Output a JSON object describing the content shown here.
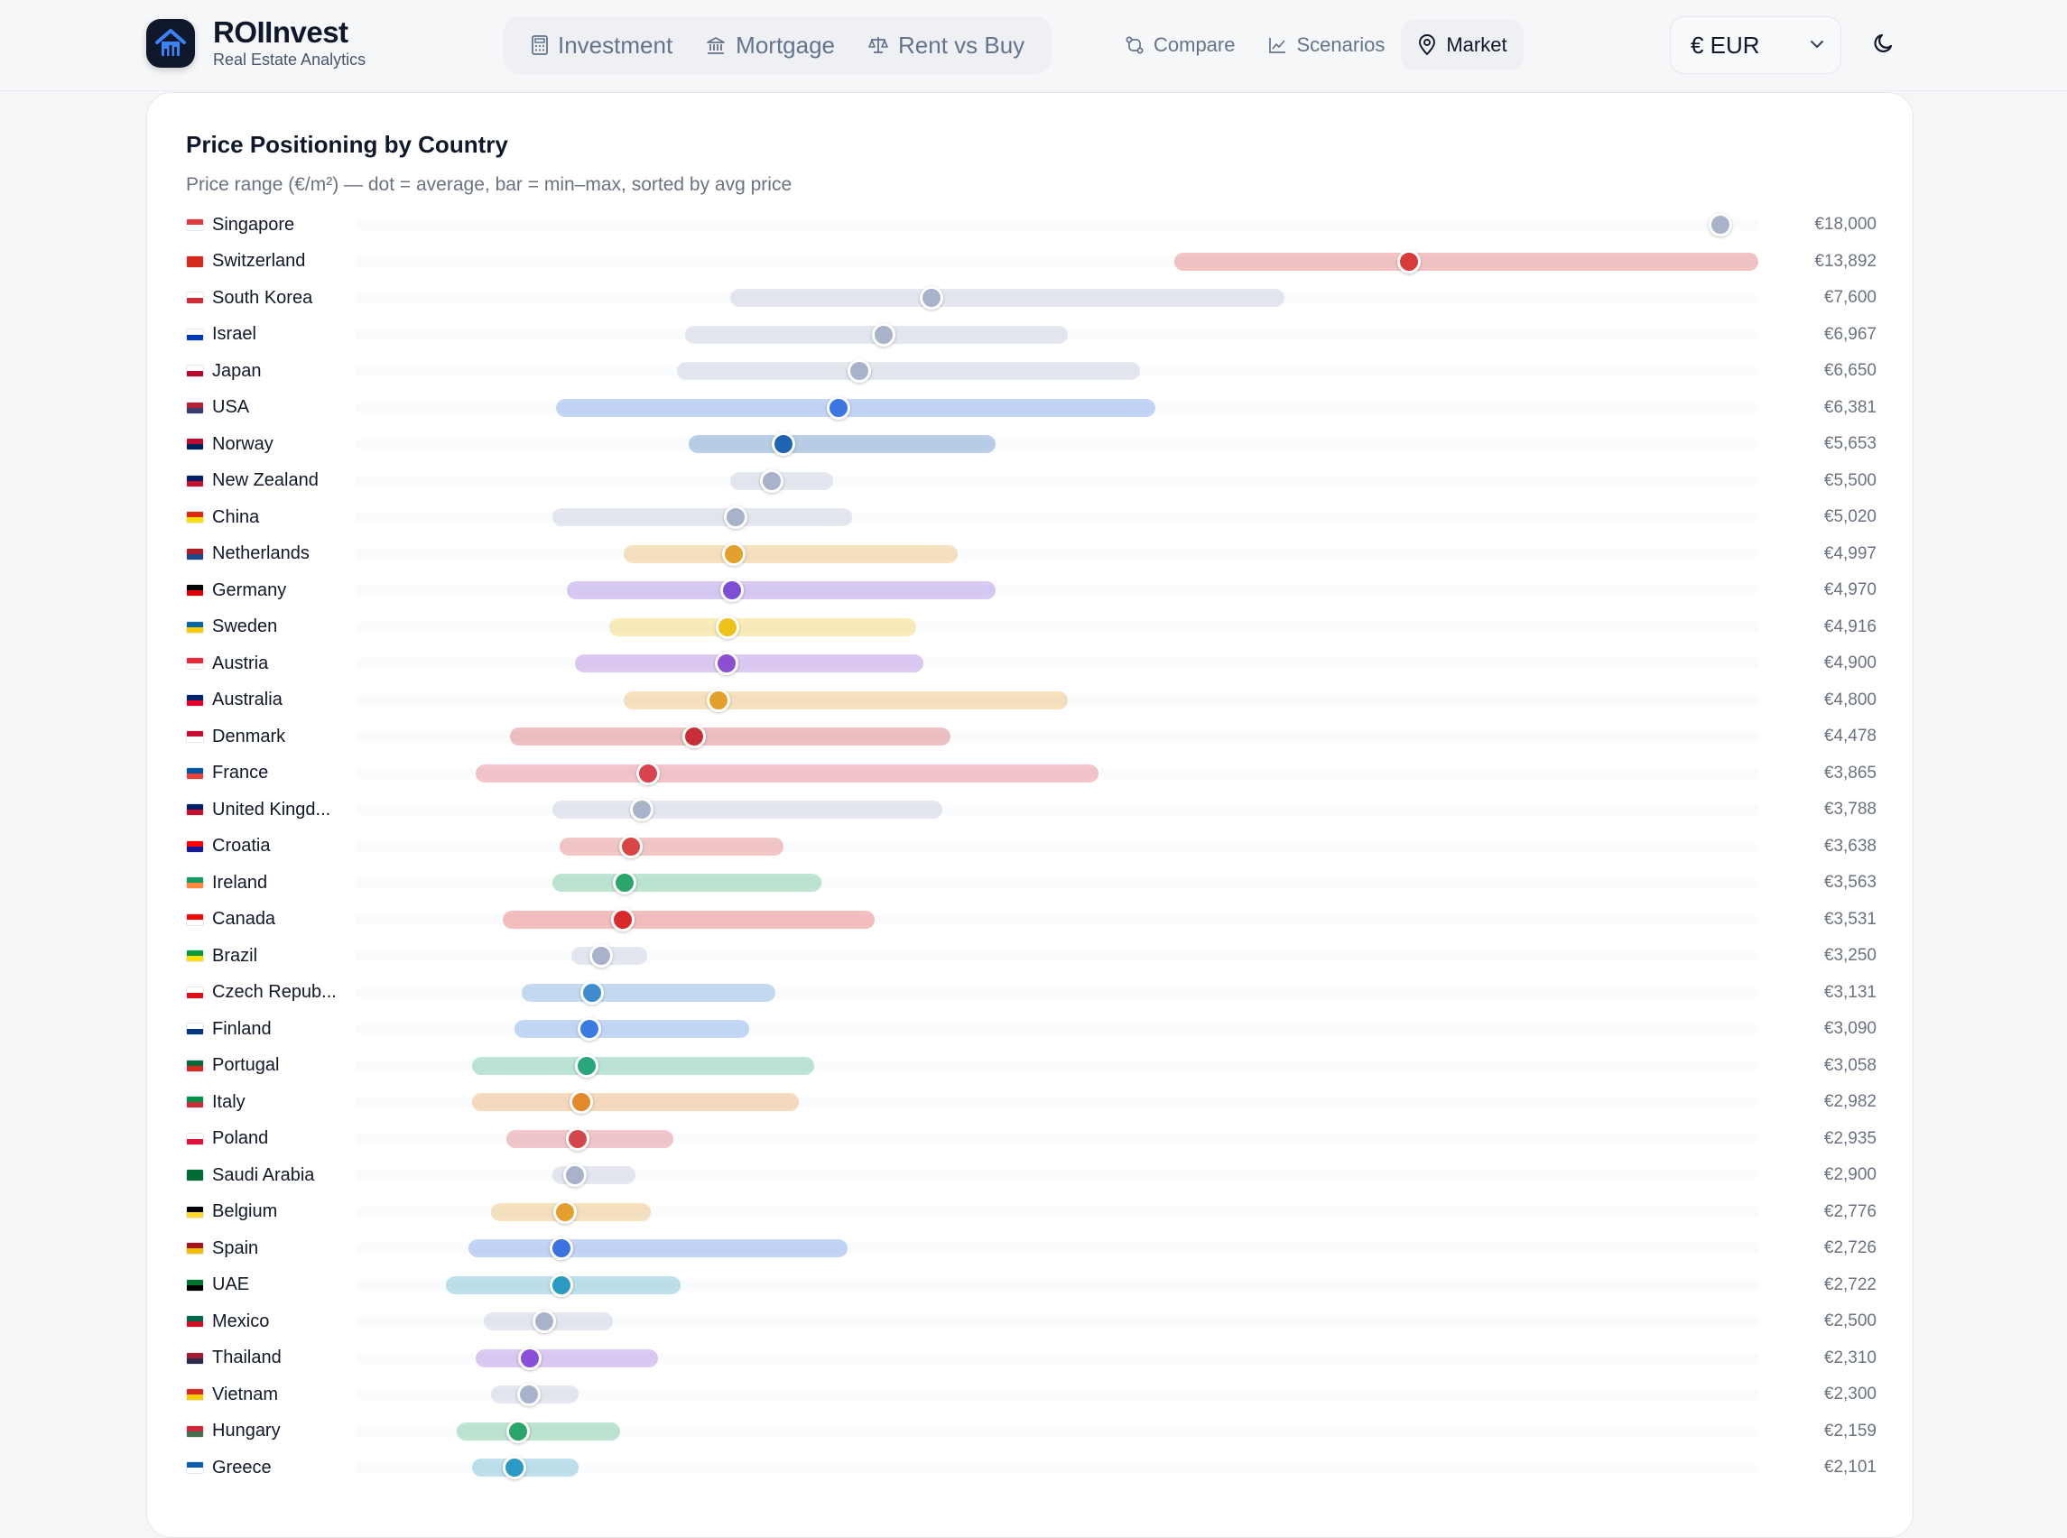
{
  "brand": {
    "title": "ROIInvest",
    "subtitle": "Real Estate Analytics"
  },
  "nav": {
    "primary": [
      {
        "label": "Investment",
        "icon": "calculator-icon"
      },
      {
        "label": "Mortgage",
        "icon": "bank-icon"
      },
      {
        "label": "Rent vs Buy",
        "icon": "scale-icon"
      }
    ],
    "secondary": [
      {
        "label": "Compare",
        "icon": "compare-icon"
      },
      {
        "label": "Scenarios",
        "icon": "line-chart-icon"
      },
      {
        "label": "Market",
        "icon": "map-pin-icon",
        "active": true
      }
    ]
  },
  "currency": {
    "selected": "€ EUR"
  },
  "card": {
    "title": "Price Positioning by Country",
    "subtitle": "Price range (€/m²) — dot = average, bar = min–max, sorted by avg price"
  },
  "chart_data": {
    "type": "range-dot",
    "unit": "€/m²",
    "xlim": [
      0,
      18500
    ],
    "rows": [
      {
        "country": "Singapore",
        "avg": 18000,
        "min": 18000,
        "max": 18000,
        "value_label": "€18,000",
        "color": "#a8b3c9",
        "flag": [
          "#e03a3e",
          "#ffffff"
        ]
      },
      {
        "country": "Switzerland",
        "avg": 13892,
        "min": 10800,
        "max": 18500,
        "value_label": "€13,892",
        "color": "#d93b3b",
        "flag": [
          "#d52b1e",
          "#d52b1e"
        ]
      },
      {
        "country": "South Korea",
        "avg": 7600,
        "min": 4950,
        "max": 12250,
        "value_label": "€7,600",
        "color": "#a8b3c9",
        "flag": [
          "#ffffff",
          "#cd2e3a"
        ]
      },
      {
        "country": "Israel",
        "avg": 6967,
        "min": 4350,
        "max": 9400,
        "value_label": "€6,967",
        "color": "#a8b3c9",
        "flag": [
          "#ffffff",
          "#0038b8"
        ]
      },
      {
        "country": "Japan",
        "avg": 6650,
        "min": 4250,
        "max": 10350,
        "value_label": "€6,650",
        "color": "#a8b3c9",
        "flag": [
          "#ffffff",
          "#bc002d"
        ]
      },
      {
        "country": "USA",
        "avg": 6381,
        "min": 2650,
        "max": 10550,
        "value_label": "€6,381",
        "color": "#3b76e1",
        "flag": [
          "#b22234",
          "#3c3b6e"
        ]
      },
      {
        "country": "Norway",
        "avg": 5653,
        "min": 4400,
        "max": 8450,
        "value_label": "€5,653",
        "color": "#1f64b0",
        "flag": [
          "#ba0c2f",
          "#00205b"
        ]
      },
      {
        "country": "New Zealand",
        "avg": 5500,
        "min": 4950,
        "max": 6300,
        "value_label": "€5,500",
        "color": "#a8b3c9",
        "flag": [
          "#012169",
          "#c8102e"
        ]
      },
      {
        "country": "China",
        "avg": 5020,
        "min": 2600,
        "max": 6550,
        "value_label": "€5,020",
        "color": "#a8b3c9",
        "flag": [
          "#de2910",
          "#ffde00"
        ]
      },
      {
        "country": "Netherlands",
        "avg": 4997,
        "min": 3550,
        "max": 7950,
        "value_label": "€4,997",
        "color": "#e3a02c",
        "flag": [
          "#ae1c28",
          "#21468b"
        ]
      },
      {
        "country": "Germany",
        "avg": 4970,
        "min": 2800,
        "max": 8450,
        "value_label": "€4,970",
        "color": "#7d4fd6",
        "flag": [
          "#000000",
          "#dd0000"
        ]
      },
      {
        "country": "Sweden",
        "avg": 4916,
        "min": 3350,
        "max": 7400,
        "value_label": "€4,916",
        "color": "#eec21b",
        "flag": [
          "#006aa7",
          "#fecc00"
        ]
      },
      {
        "country": "Austria",
        "avg": 4900,
        "min": 2900,
        "max": 7500,
        "value_label": "€4,900",
        "color": "#8d4fd1",
        "flag": [
          "#ed2939",
          "#ffffff"
        ]
      },
      {
        "country": "Australia",
        "avg": 4800,
        "min": 3550,
        "max": 9400,
        "value_label": "€4,800",
        "color": "#e3a02c",
        "flag": [
          "#012169",
          "#e4002b"
        ]
      },
      {
        "country": "Denmark",
        "avg": 4478,
        "min": 2050,
        "max": 7850,
        "value_label": "€4,478",
        "color": "#c82f37",
        "flag": [
          "#c60c30",
          "#ffffff"
        ]
      },
      {
        "country": "France",
        "avg": 3865,
        "min": 1600,
        "max": 9800,
        "value_label": "€3,865",
        "color": "#d9434f",
        "flag": [
          "#0055a4",
          "#ef4135"
        ]
      },
      {
        "country": "United Kingd...",
        "avg": 3788,
        "min": 2600,
        "max": 7750,
        "value_label": "€3,788",
        "color": "#a8b3c9",
        "flag": [
          "#012169",
          "#c8102e"
        ]
      },
      {
        "country": "Croatia",
        "avg": 3638,
        "min": 2700,
        "max": 5650,
        "value_label": "€3,638",
        "color": "#d94545",
        "flag": [
          "#ff0000",
          "#171796"
        ]
      },
      {
        "country": "Ireland",
        "avg": 3563,
        "min": 2600,
        "max": 6150,
        "value_label": "€3,563",
        "color": "#2aa66a",
        "flag": [
          "#169b62",
          "#ff883e"
        ]
      },
      {
        "country": "Canada",
        "avg": 3531,
        "min": 1950,
        "max": 6850,
        "value_label": "€3,531",
        "color": "#d92b2b",
        "flag": [
          "#ff0000",
          "#ffffff"
        ]
      },
      {
        "country": "Brazil",
        "avg": 3250,
        "min": 2850,
        "max": 3850,
        "value_label": "€3,250",
        "color": "#a8b3c9",
        "flag": [
          "#009c3b",
          "#ffdf00"
        ]
      },
      {
        "country": "Czech Repub...",
        "avg": 3131,
        "min": 2200,
        "max": 5550,
        "value_label": "€3,131",
        "color": "#3e8ccd",
        "flag": [
          "#ffffff",
          "#d7141a"
        ]
      },
      {
        "country": "Finland",
        "avg": 3090,
        "min": 2100,
        "max": 5200,
        "value_label": "€3,090",
        "color": "#3c7ce0",
        "flag": [
          "#ffffff",
          "#003580"
        ]
      },
      {
        "country": "Portugal",
        "avg": 3058,
        "min": 1550,
        "max": 6050,
        "value_label": "€3,058",
        "color": "#27a77a",
        "flag": [
          "#046a38",
          "#da291c"
        ]
      },
      {
        "country": "Italy",
        "avg": 2982,
        "min": 1550,
        "max": 5850,
        "value_label": "€2,982",
        "color": "#e3892c",
        "flag": [
          "#009246",
          "#ce2b37"
        ]
      },
      {
        "country": "Poland",
        "avg": 2935,
        "min": 2000,
        "max": 4200,
        "value_label": "€2,935",
        "color": "#d5474e",
        "flag": [
          "#ffffff",
          "#dc143c"
        ]
      },
      {
        "country": "Saudi Arabia",
        "avg": 2900,
        "min": 2600,
        "max": 3700,
        "value_label": "€2,900",
        "color": "#a8b3c9",
        "flag": [
          "#006c35",
          "#006c35"
        ]
      },
      {
        "country": "Belgium",
        "avg": 2776,
        "min": 1800,
        "max": 3900,
        "value_label": "€2,776",
        "color": "#e3a02c",
        "flag": [
          "#000000",
          "#fdda24"
        ]
      },
      {
        "country": "Spain",
        "avg": 2726,
        "min": 1500,
        "max": 6500,
        "value_label": "€2,726",
        "color": "#3a73e0",
        "flag": [
          "#aa151b",
          "#f1bf00"
        ]
      },
      {
        "country": "UAE",
        "avg": 2722,
        "min": 1200,
        "max": 4300,
        "value_label": "€2,722",
        "color": "#2c9bc3",
        "flag": [
          "#00732f",
          "#000000"
        ]
      },
      {
        "country": "Mexico",
        "avg": 2500,
        "min": 1700,
        "max": 3400,
        "value_label": "€2,500",
        "color": "#a8b3c9",
        "flag": [
          "#006847",
          "#ce1126"
        ]
      },
      {
        "country": "Thailand",
        "avg": 2310,
        "min": 1600,
        "max": 4000,
        "value_label": "€2,310",
        "color": "#8a4fd8",
        "flag": [
          "#a51931",
          "#2d2a4a"
        ]
      },
      {
        "country": "Vietnam",
        "avg": 2300,
        "min": 1800,
        "max": 2950,
        "value_label": "€2,300",
        "color": "#a8b3c9",
        "flag": [
          "#da251d",
          "#ffcd00"
        ]
      },
      {
        "country": "Hungary",
        "avg": 2159,
        "min": 1350,
        "max": 3500,
        "value_label": "€2,159",
        "color": "#2aa66a",
        "flag": [
          "#ce2939",
          "#477050"
        ]
      },
      {
        "country": "Greece",
        "avg": 2101,
        "min": 1550,
        "max": 2950,
        "value_label": "€2,101",
        "color": "#2c9bc3",
        "flag": [
          "#0d5eaf",
          "#ffffff"
        ]
      }
    ]
  }
}
